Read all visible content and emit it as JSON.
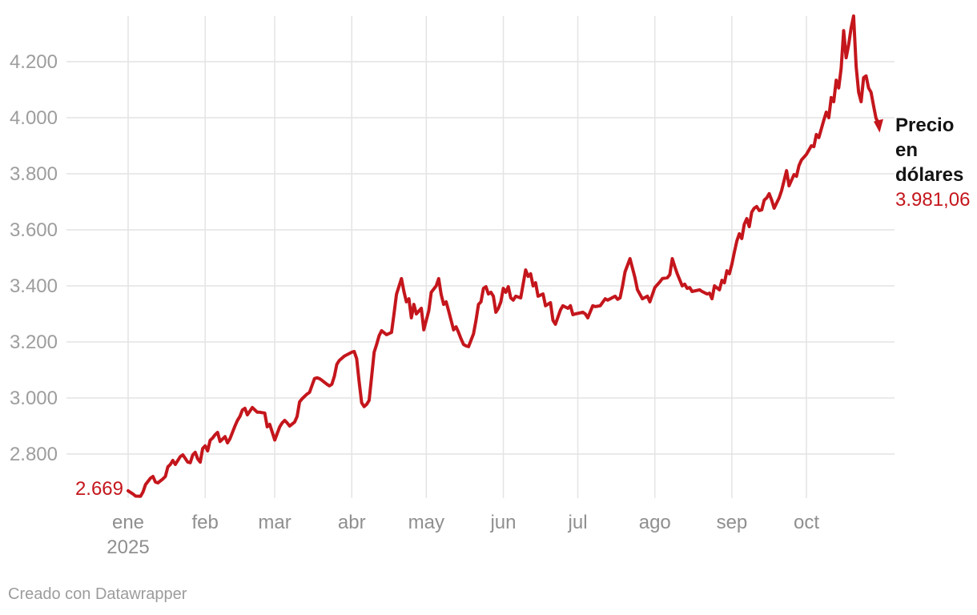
{
  "chart_data": {
    "type": "line",
    "title": "",
    "series_name": "Precio en dólares",
    "start_label": "2.669",
    "end_label": "3.981,06",
    "end_value": 3981.06,
    "line_color": "#c4161c",
    "grid_on": true,
    "ylim": [
      2630,
      4380
    ],
    "xlim_days": [
      0,
      303
    ],
    "y_ticks": [
      {
        "label": "2.800",
        "value": 2800
      },
      {
        "label": "3.000",
        "value": 3000
      },
      {
        "label": "3.200",
        "value": 3200
      },
      {
        "label": "3.400",
        "value": 3400
      },
      {
        "label": "3.600",
        "value": 3600
      },
      {
        "label": "3.800",
        "value": 3800
      },
      {
        "label": "4.000",
        "value": 4000
      },
      {
        "label": "4.200",
        "value": 4200
      }
    ],
    "x_ticks": [
      {
        "label": "ene",
        "sublabel": "2025",
        "day": 0
      },
      {
        "label": "feb",
        "day": 31
      },
      {
        "label": "mar",
        "day": 59
      },
      {
        "label": "abr",
        "day": 90
      },
      {
        "label": "may",
        "day": 120
      },
      {
        "label": "jun",
        "day": 151
      },
      {
        "label": "jul",
        "day": 181
      },
      {
        "label": "ago",
        "day": 212
      },
      {
        "label": "sep",
        "day": 243
      },
      {
        "label": "oct",
        "day": 273
      }
    ],
    "points": [
      [
        0,
        2669
      ],
      [
        2,
        2657
      ],
      [
        3,
        2650
      ],
      [
        5,
        2649
      ],
      [
        6,
        2665
      ],
      [
        7,
        2691
      ],
      [
        9,
        2714
      ],
      [
        10,
        2720
      ],
      [
        11,
        2700
      ],
      [
        12,
        2697
      ],
      [
        14,
        2711
      ],
      [
        15,
        2720
      ],
      [
        16,
        2754
      ],
      [
        17,
        2763
      ],
      [
        18,
        2777
      ],
      [
        19,
        2763
      ],
      [
        21,
        2791
      ],
      [
        22,
        2797
      ],
      [
        24,
        2771
      ],
      [
        25,
        2769
      ],
      [
        26,
        2797
      ],
      [
        27,
        2806
      ],
      [
        28,
        2783
      ],
      [
        29,
        2771
      ],
      [
        30,
        2820
      ],
      [
        31,
        2829
      ],
      [
        32,
        2811
      ],
      [
        33,
        2849
      ],
      [
        34,
        2857
      ],
      [
        35,
        2869
      ],
      [
        36,
        2877
      ],
      [
        37,
        2845
      ],
      [
        39,
        2862
      ],
      [
        40,
        2840
      ],
      [
        41,
        2855
      ],
      [
        43,
        2900
      ],
      [
        44,
        2920
      ],
      [
        45,
        2934
      ],
      [
        46,
        2957
      ],
      [
        47,
        2963
      ],
      [
        48,
        2940
      ],
      [
        50,
        2966
      ],
      [
        52,
        2949
      ],
      [
        53,
        2949
      ],
      [
        55,
        2946
      ],
      [
        56,
        2897
      ],
      [
        57,
        2906
      ],
      [
        59,
        2850
      ],
      [
        61,
        2897
      ],
      [
        62,
        2911
      ],
      [
        63,
        2920
      ],
      [
        64,
        2911
      ],
      [
        65,
        2900
      ],
      [
        67,
        2914
      ],
      [
        68,
        2934
      ],
      [
        69,
        2986
      ],
      [
        70,
        2997
      ],
      [
        72,
        3014
      ],
      [
        73,
        3020
      ],
      [
        75,
        3069
      ],
      [
        76,
        3072
      ],
      [
        77,
        3069
      ],
      [
        78,
        3063
      ],
      [
        80,
        3049
      ],
      [
        81,
        3043
      ],
      [
        82,
        3049
      ],
      [
        83,
        3077
      ],
      [
        84,
        3120
      ],
      [
        85,
        3134
      ],
      [
        87,
        3149
      ],
      [
        88,
        3154
      ],
      [
        90,
        3163
      ],
      [
        91,
        3166
      ],
      [
        92,
        3140
      ],
      [
        93,
        3057
      ],
      [
        94,
        2983
      ],
      [
        95,
        2969
      ],
      [
        96,
        2977
      ],
      [
        97,
        2991
      ],
      [
        98,
        3077
      ],
      [
        99,
        3163
      ],
      [
        100,
        3191
      ],
      [
        101,
        3222
      ],
      [
        102,
        3240
      ],
      [
        104,
        3226
      ],
      [
        106,
        3234
      ],
      [
        107,
        3300
      ],
      [
        108,
        3370
      ],
      [
        110,
        3426
      ],
      [
        111,
        3380
      ],
      [
        112,
        3343
      ],
      [
        113,
        3354
      ],
      [
        114,
        3286
      ],
      [
        115,
        3334
      ],
      [
        116,
        3300
      ],
      [
        118,
        3320
      ],
      [
        119,
        3243
      ],
      [
        121,
        3311
      ],
      [
        122,
        3377
      ],
      [
        124,
        3400
      ],
      [
        125,
        3426
      ],
      [
        126,
        3369
      ],
      [
        127,
        3334
      ],
      [
        128,
        3343
      ],
      [
        129,
        3311
      ],
      [
        130,
        3277
      ],
      [
        131,
        3243
      ],
      [
        132,
        3254
      ],
      [
        133,
        3234
      ],
      [
        134,
        3211
      ],
      [
        135,
        3191
      ],
      [
        136,
        3186
      ],
      [
        137,
        3183
      ],
      [
        139,
        3229
      ],
      [
        140,
        3277
      ],
      [
        141,
        3334
      ],
      [
        142,
        3343
      ],
      [
        143,
        3391
      ],
      [
        144,
        3397
      ],
      [
        145,
        3371
      ],
      [
        146,
        3377
      ],
      [
        147,
        3363
      ],
      [
        148,
        3306
      ],
      [
        149,
        3320
      ],
      [
        150,
        3343
      ],
      [
        151,
        3391
      ],
      [
        152,
        3377
      ],
      [
        153,
        3397
      ],
      [
        154,
        3357
      ],
      [
        155,
        3349
      ],
      [
        156,
        3363
      ],
      [
        158,
        3357
      ],
      [
        160,
        3457
      ],
      [
        161,
        3434
      ],
      [
        162,
        3443
      ],
      [
        163,
        3400
      ],
      [
        164,
        3411
      ],
      [
        165,
        3363
      ],
      [
        167,
        3371
      ],
      [
        168,
        3329
      ],
      [
        170,
        3340
      ],
      [
        171,
        3277
      ],
      [
        172,
        3263
      ],
      [
        174,
        3314
      ],
      [
        175,
        3329
      ],
      [
        177,
        3320
      ],
      [
        178,
        3329
      ],
      [
        179,
        3297
      ],
      [
        180,
        3300
      ],
      [
        183,
        3306
      ],
      [
        184,
        3300
      ],
      [
        185,
        3286
      ],
      [
        187,
        3329
      ],
      [
        188,
        3326
      ],
      [
        190,
        3329
      ],
      [
        192,
        3354
      ],
      [
        193,
        3349
      ],
      [
        196,
        3363
      ],
      [
        197,
        3352
      ],
      [
        198,
        3357
      ],
      [
        199,
        3400
      ],
      [
        200,
        3450
      ],
      [
        202,
        3497
      ],
      [
        204,
        3429
      ],
      [
        205,
        3386
      ],
      [
        207,
        3354
      ],
      [
        209,
        3363
      ],
      [
        210,
        3343
      ],
      [
        212,
        3394
      ],
      [
        214,
        3414
      ],
      [
        215,
        3426
      ],
      [
        217,
        3429
      ],
      [
        218,
        3440
      ],
      [
        219,
        3497
      ],
      [
        220,
        3469
      ],
      [
        221,
        3443
      ],
      [
        223,
        3400
      ],
      [
        224,
        3406
      ],
      [
        225,
        3391
      ],
      [
        226,
        3394
      ],
      [
        227,
        3380
      ],
      [
        230,
        3386
      ],
      [
        231,
        3380
      ],
      [
        233,
        3371
      ],
      [
        234,
        3374
      ],
      [
        235,
        3354
      ],
      [
        236,
        3400
      ],
      [
        238,
        3386
      ],
      [
        239,
        3420
      ],
      [
        240,
        3411
      ],
      [
        241,
        3454
      ],
      [
        242,
        3443
      ],
      [
        243,
        3477
      ],
      [
        244,
        3520
      ],
      [
        245,
        3560
      ],
      [
        246,
        3586
      ],
      [
        247,
        3569
      ],
      [
        248,
        3620
      ],
      [
        249,
        3640
      ],
      [
        250,
        3611
      ],
      [
        251,
        3663
      ],
      [
        252,
        3677
      ],
      [
        253,
        3683
      ],
      [
        254,
        3669
      ],
      [
        255,
        3671
      ],
      [
        256,
        3706
      ],
      [
        257,
        3714
      ],
      [
        258,
        3729
      ],
      [
        259,
        3706
      ],
      [
        260,
        3677
      ],
      [
        262,
        3714
      ],
      [
        263,
        3740
      ],
      [
        265,
        3811
      ],
      [
        266,
        3757
      ],
      [
        268,
        3797
      ],
      [
        269,
        3791
      ],
      [
        270,
        3829
      ],
      [
        271,
        3849
      ],
      [
        273,
        3869
      ],
      [
        275,
        3900
      ],
      [
        276,
        3897
      ],
      [
        277,
        3940
      ],
      [
        278,
        3929
      ],
      [
        279,
        3960
      ],
      [
        280,
        3991
      ],
      [
        281,
        4020
      ],
      [
        282,
        4000
      ],
      [
        283,
        4072
      ],
      [
        284,
        4057
      ],
      [
        285,
        4134
      ],
      [
        286,
        4106
      ],
      [
        287,
        4177
      ],
      [
        288,
        4311
      ],
      [
        289,
        4214
      ],
      [
        290,
        4260
      ],
      [
        291,
        4320
      ],
      [
        292,
        4363
      ],
      [
        293,
        4183
      ],
      [
        294,
        4091
      ],
      [
        295,
        4057
      ],
      [
        296,
        4143
      ],
      [
        297,
        4149
      ],
      [
        298,
        4106
      ],
      [
        299,
        4091
      ],
      [
        300,
        4043
      ],
      [
        301,
        3998
      ],
      [
        302,
        3981.06
      ]
    ]
  },
  "colors": {
    "line": "#c4161c",
    "grid": "#e4e4e4",
    "y_axis_text": "#9d9d9d",
    "x_axis_text": "#8f8f8f",
    "annotation_text": "#141414",
    "credit_text": "#9c9c9c"
  },
  "annotation": {
    "line1": "Precio",
    "line2": "en",
    "line3": "dólares",
    "value": "3.981,06"
  },
  "footer": {
    "credit": "Creado con Datawrapper"
  }
}
